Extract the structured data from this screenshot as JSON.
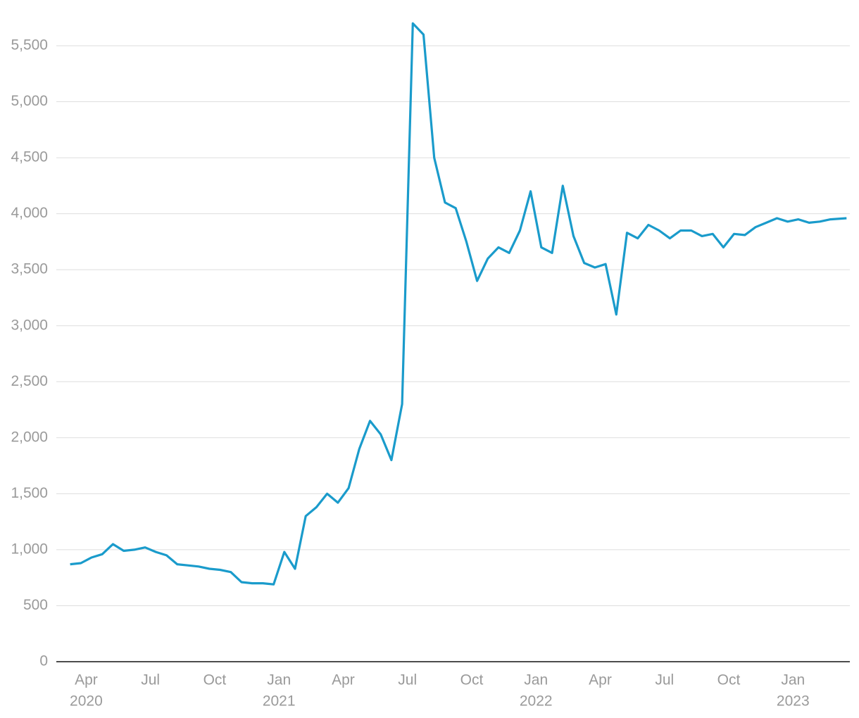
{
  "chart_data": {
    "type": "line",
    "x": [
      "2020-03",
      "2020-03",
      "2020-04",
      "2020-04",
      "2020-05",
      "2020-05",
      "2020-06",
      "2020-06",
      "2020-07",
      "2020-07",
      "2020-08",
      "2020-08",
      "2020-09",
      "2020-09",
      "2020-10",
      "2020-10",
      "2020-11",
      "2020-11",
      "2020-12",
      "2020-12",
      "2021-01",
      "2021-01",
      "2021-02",
      "2021-02",
      "2021-03",
      "2021-03",
      "2021-04",
      "2021-04",
      "2021-05",
      "2021-05",
      "2021-06",
      "2021-06",
      "2021-07",
      "2021-07",
      "2021-08",
      "2021-08",
      "2021-09",
      "2021-09",
      "2021-10",
      "2021-10",
      "2021-11",
      "2021-11",
      "2021-12",
      "2021-12",
      "2022-01",
      "2022-01",
      "2022-02",
      "2022-02",
      "2022-03",
      "2022-03",
      "2022-04",
      "2022-04",
      "2022-05",
      "2022-05",
      "2022-06",
      "2022-06",
      "2022-07",
      "2022-07",
      "2022-08",
      "2022-08",
      "2022-09",
      "2022-09",
      "2022-10",
      "2022-10",
      "2022-11",
      "2022-11",
      "2022-12",
      "2022-12",
      "2023-01",
      "2023-01",
      "2023-02",
      "2023-02",
      "2023-03"
    ],
    "series": [
      {
        "color": "#1a9bcb",
        "values": [
          870,
          880,
          930,
          960,
          1050,
          990,
          1000,
          1020,
          980,
          950,
          870,
          860,
          850,
          830,
          820,
          800,
          710,
          700,
          700,
          690,
          980,
          830,
          1300,
          1380,
          1500,
          1420,
          1550,
          1900,
          2150,
          2030,
          1800,
          2300,
          5700,
          5600,
          4500,
          4100,
          4050,
          3750,
          3400,
          3600,
          3700,
          3650,
          3850,
          4200,
          3700,
          3650,
          4250,
          3800,
          3560,
          3520,
          3550,
          3100,
          3830,
          3780,
          3900,
          3850,
          3780,
          3850,
          3850,
          3800,
          3820,
          3700,
          3820,
          3810,
          3880,
          3920,
          3960,
          3930,
          3950,
          3920,
          3930,
          3950,
          3960
        ]
      }
    ],
    "ylim": [
      0,
      5850
    ],
    "yticks": [
      0,
      500,
      {
        "value": 1000,
        "label": "1,000"
      },
      {
        "value": 1500,
        "label": "1,500"
      },
      {
        "value": 2000,
        "label": "2,000"
      },
      {
        "value": 2500,
        "label": "2,500"
      },
      {
        "value": 3000,
        "label": "3,000"
      },
      {
        "value": 3500,
        "label": "3,500"
      },
      {
        "value": 4000,
        "label": "4,000"
      },
      {
        "value": 4500,
        "label": "4,500"
      },
      {
        "value": 5000,
        "label": "5,000"
      },
      {
        "value": 5500,
        "label": "5,500"
      }
    ],
    "xticks": [
      {
        "value": "2020-04",
        "label": "Apr"
      },
      {
        "value": "2020-07",
        "label": "Jul"
      },
      {
        "value": "2020-10",
        "label": "Oct"
      },
      {
        "value": "2021-01",
        "label": "Jan"
      },
      {
        "value": "2021-04",
        "label": "Apr"
      },
      {
        "value": "2021-07",
        "label": "Jul"
      },
      {
        "value": "2021-10",
        "label": "Oct"
      },
      {
        "value": "2022-01",
        "label": "Jan"
      },
      {
        "value": "2022-04",
        "label": "Apr"
      },
      {
        "value": "2022-07",
        "label": "Jul"
      },
      {
        "value": "2022-10",
        "label": "Oct"
      },
      {
        "value": "2023-01",
        "label": "Jan"
      }
    ],
    "xtick_years": [
      {
        "value": "2020-04",
        "label": "2020"
      },
      {
        "value": "2021-01",
        "label": "2021"
      },
      {
        "value": "2022-01",
        "label": "2022"
      },
      {
        "value": "2023-01",
        "label": "2023"
      }
    ],
    "grid": true
  }
}
